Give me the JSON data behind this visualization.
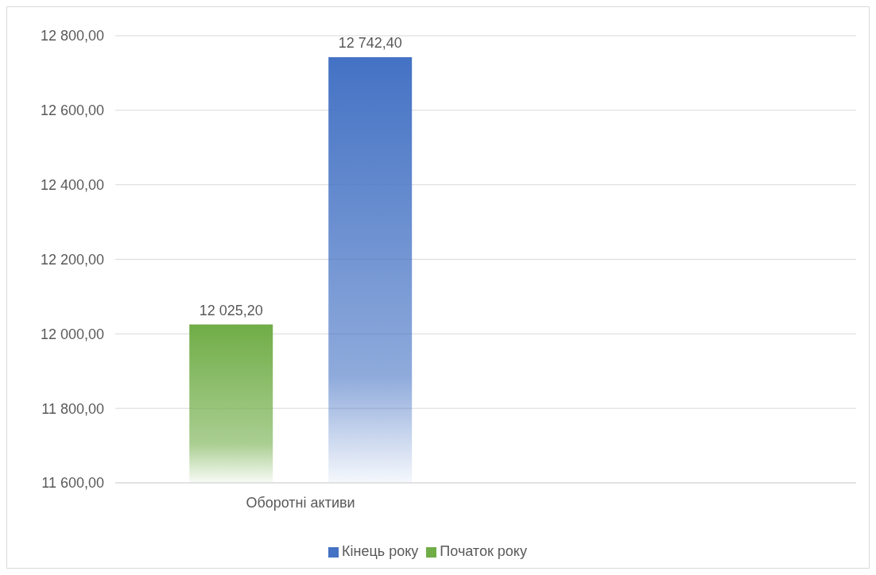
{
  "chart_data": {
    "type": "bar",
    "categories": [
      "Оборотні активи",
      null
    ],
    "series": [
      {
        "name": "Початок року",
        "color": "#70ad47",
        "values": [
          12025.2,
          null
        ],
        "value_labels": [
          "12 025,20",
          null
        ]
      },
      {
        "name": "Кінець року",
        "color": "#4472c4",
        "values": [
          12742.4,
          null
        ],
        "value_labels": [
          "12 742,40",
          null
        ]
      }
    ],
    "ylim": [
      11600,
      12800
    ],
    "yticks": [
      {
        "value": 11600,
        "label": "11 600,00"
      },
      {
        "value": 11800,
        "label": "11 800,00"
      },
      {
        "value": 12000,
        "label": "12 000,00"
      },
      {
        "value": 12200,
        "label": "12 200,00"
      },
      {
        "value": 12400,
        "label": "12 400,00"
      },
      {
        "value": 12600,
        "label": "12 600,00"
      },
      {
        "value": 12800,
        "label": "12 800,00"
      }
    ],
    "grid": "y",
    "legend": "bottom"
  }
}
